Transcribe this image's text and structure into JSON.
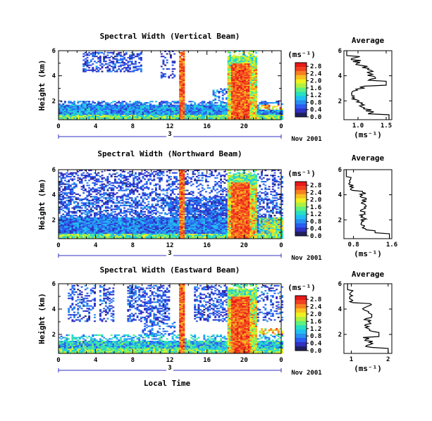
{
  "chart_data": [
    {
      "type": "heatmap",
      "title": "Spectral Width (Vertical Beam)",
      "xlabel": "",
      "ylabel": "Height (km)",
      "xlim": [
        0,
        24
      ],
      "ylim": [
        0.5,
        6
      ],
      "x_ticks": [
        "0",
        "4",
        "8",
        "12",
        "16",
        "20",
        "0"
      ],
      "y_ticks": [
        "2",
        "4",
        "6"
      ],
      "day_label": "3",
      "date_label": "Nov 2001",
      "colorbar": {
        "unit": "(ms⁻¹)",
        "ticks": [
          "0.0",
          "0.4",
          "0.8",
          "1.2",
          "1.6",
          "2.0",
          "2.4",
          "2.8"
        ],
        "range": [
          0,
          3.0
        ]
      },
      "average": {
        "title": "Average",
        "xlabel": "(ms⁻¹)",
        "x_ticks": [
          "1.0",
          "1.5"
        ],
        "xlim": [
          0.75,
          1.6
        ],
        "y_ticks": [
          "2",
          "4",
          "6"
        ],
        "ylim": [
          0.5,
          6
        ]
      }
    },
    {
      "type": "heatmap",
      "title": "Spectral Width (Northward Beam)",
      "xlabel": "",
      "ylabel": "Height (km)",
      "xlim": [
        0,
        24
      ],
      "ylim": [
        0.5,
        6
      ],
      "x_ticks": [
        "0",
        "4",
        "8",
        "12",
        "16",
        "20",
        "0"
      ],
      "y_ticks": [
        "2",
        "4",
        "6"
      ],
      "day_label": "3",
      "date_label": "Nov 2001",
      "colorbar": {
        "unit": "(ms⁻¹)",
        "ticks": [
          "0.0",
          "0.4",
          "0.8",
          "1.2",
          "1.6",
          "2.0",
          "2.4",
          "2.8"
        ],
        "range": [
          0,
          3.0
        ]
      },
      "average": {
        "title": "Average",
        "xlabel": "(ms⁻¹)",
        "x_ticks": [
          "0.8",
          "1.6"
        ],
        "xlim": [
          0.6,
          1.6
        ],
        "y_ticks": [
          "2",
          "4",
          "6"
        ],
        "ylim": [
          0.5,
          6
        ]
      }
    },
    {
      "type": "heatmap",
      "title": "Spectral Width (Eastward Beam)",
      "xlabel": "Local Time",
      "ylabel": "Height (km)",
      "xlim": [
        0,
        24
      ],
      "ylim": [
        0.5,
        6
      ],
      "x_ticks": [
        "0",
        "4",
        "8",
        "12",
        "16",
        "20",
        "0"
      ],
      "y_ticks": [
        "2",
        "4",
        "6"
      ],
      "day_label": "3",
      "date_label": "Nov 2001",
      "colorbar": {
        "unit": "(ms⁻¹)",
        "ticks": [
          "0.0",
          "0.4",
          "0.8",
          "1.2",
          "1.6",
          "2.0",
          "2.4",
          "2.8"
        ],
        "range": [
          0,
          3.0
        ]
      },
      "average": {
        "title": "Average",
        "xlabel": "(ms⁻¹)",
        "x_ticks": [
          "1",
          "2"
        ],
        "xlim": [
          0.8,
          2.1
        ],
        "y_ticks": [
          "2",
          "4",
          "6"
        ],
        "ylim": [
          0.5,
          6
        ]
      }
    }
  ],
  "colors": {
    "colormap": [
      "#202060",
      "#3030c0",
      "#2a5cf0",
      "#2890f0",
      "#20c0f0",
      "#28e0c0",
      "#60f080",
      "#b0f040",
      "#f0f020",
      "#f8c020",
      "#f88020",
      "#f04020",
      "#e81818"
    ]
  }
}
